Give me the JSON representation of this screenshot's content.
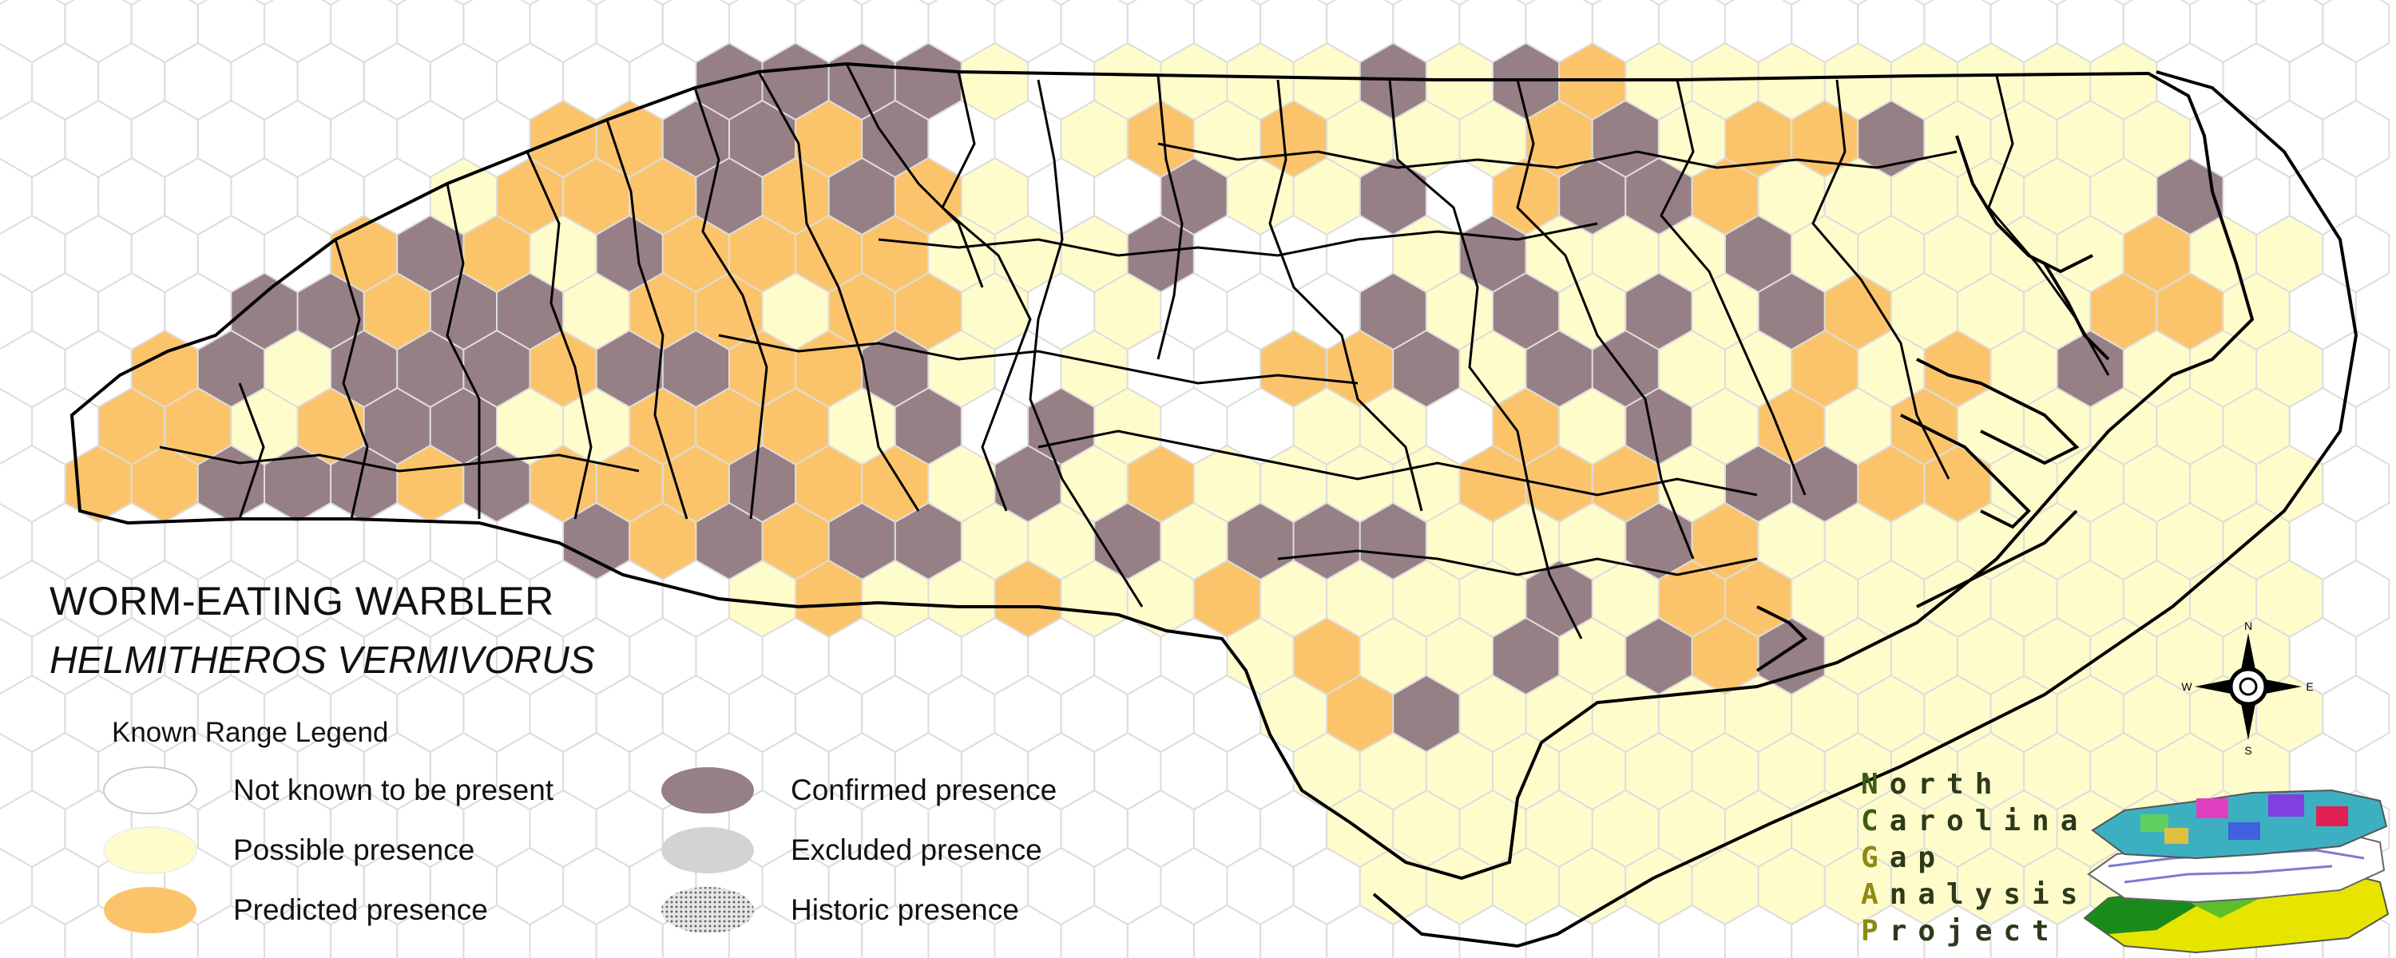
{
  "title": "WORM-EATING WARBLER",
  "subtitle": "HELMITHEROS VERMIVORUS",
  "legend": {
    "title": "Known Range Legend",
    "items": [
      {
        "label": "Not known to be present",
        "color": "#ffffff"
      },
      {
        "label": "Possible presence",
        "color": "#fffccc"
      },
      {
        "label": "Predicted presence",
        "color": "#fcc46a"
      },
      {
        "label": "Confirmed presence",
        "color": "#977f86"
      },
      {
        "label": "Excluded presence",
        "color": "#d3d3d3"
      },
      {
        "label": "Historic presence",
        "color": "#bdbdbd"
      }
    ]
  },
  "compass": {
    "n": "N",
    "s": "S",
    "e": "E",
    "w": "W"
  },
  "logo": {
    "line1_cap": "N",
    "line1_rest": "orth",
    "line2_cap": "C",
    "line2_rest": "arolina",
    "line3_cap": "G",
    "line3_rest": "ap",
    "line4_cap": "A",
    "line4_rest": "nalysis",
    "line5_cap": "P",
    "line5_rest": "roject"
  },
  "map_colors": {
    "outline": "#000000",
    "hex_border": "#dddddd",
    "possible": "#fffccc",
    "predicted": "#fcc46a",
    "confirmed": "#977f86"
  }
}
